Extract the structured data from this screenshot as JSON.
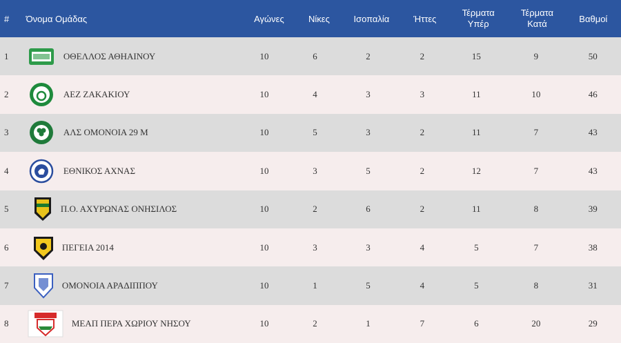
{
  "table": {
    "headers": {
      "rank": "#",
      "team": "Όνομα Ομάδας",
      "played": "Αγώνες",
      "wins": "Νίκες",
      "draws": "Ισοπαλία",
      "losses": "Ήττες",
      "gf_line1": "Τέρματα",
      "gf_line2": "Υπέρ",
      "ga_line1": "Τέρματα",
      "ga_line2": "Κατά",
      "points": "Βαθμοί"
    },
    "rows": [
      {
        "rank": "1",
        "team": "ΟΘΕΛΛΟΣ ΑΘΗΑΙΝΟΥ",
        "played": "10",
        "wins": "6",
        "draws": "2",
        "losses": "2",
        "gf": "15",
        "ga": "9",
        "points": "50",
        "logo_icon": "othellos-crest-icon",
        "logo_color": "#2e9b4a"
      },
      {
        "rank": "2",
        "team": "ΑΕΖ ΖΑΚΑΚΙΟΥ",
        "played": "10",
        "wins": "4",
        "draws": "3",
        "losses": "3",
        "gf": "11",
        "ga": "10",
        "points": "46",
        "logo_icon": "aez-crest-icon",
        "logo_color": "#1e8a3c"
      },
      {
        "rank": "3",
        "team": "ΑΛΣ ΟΜΟΝΟΙΑ 29 Μ",
        "played": "10",
        "wins": "5",
        "draws": "3",
        "losses": "2",
        "gf": "11",
        "ga": "7",
        "points": "43",
        "logo_icon": "omonoia-29m-crest-icon",
        "logo_color": "#1f7a3a"
      },
      {
        "rank": "4",
        "team": "ΕΘΝΙΚΟΣ ΑΧΝΑΣ",
        "played": "10",
        "wins": "3",
        "draws": "5",
        "losses": "2",
        "gf": "12",
        "ga": "7",
        "points": "43",
        "logo_icon": "ethnikos-achnas-crest-icon",
        "logo_color": "#2a4d9e"
      },
      {
        "rank": "5",
        "team": "Π.Ο. ΑΧΥΡΩΝΑΣ ΟΝΗΣΙΛΟΣ",
        "played": "10",
        "wins": "2",
        "draws": "6",
        "losses": "2",
        "gf": "11",
        "ga": "8",
        "points": "39",
        "logo_icon": "achyronas-crest-icon",
        "logo_color": "#e8c21a"
      },
      {
        "rank": "6",
        "team": "ΠΕΓΕΙΑ 2014",
        "played": "10",
        "wins": "3",
        "draws": "3",
        "losses": "4",
        "gf": "5",
        "ga": "7",
        "points": "38",
        "logo_icon": "pegeia-crest-icon",
        "logo_color": "#f2c81e"
      },
      {
        "rank": "7",
        "team": "ΟΜΟΝΟΙΑ ΑΡΑΔΙΠΠΟΥ",
        "played": "10",
        "wins": "1",
        "draws": "5",
        "losses": "4",
        "gf": "5",
        "ga": "8",
        "points": "31",
        "logo_icon": "omonoia-aradippou-crest-icon",
        "logo_color": "#3a5fc0"
      },
      {
        "rank": "8",
        "team": "ΜΕΑΠ ΠΕΡΑ ΧΩΡΙΟΥ ΝΗΣΟΥ",
        "played": "10",
        "wins": "2",
        "draws": "1",
        "losses": "7",
        "gf": "6",
        "ga": "20",
        "points": "29",
        "logo_icon": "meap-crest-icon",
        "logo_color": "#d62b2b"
      }
    ]
  }
}
